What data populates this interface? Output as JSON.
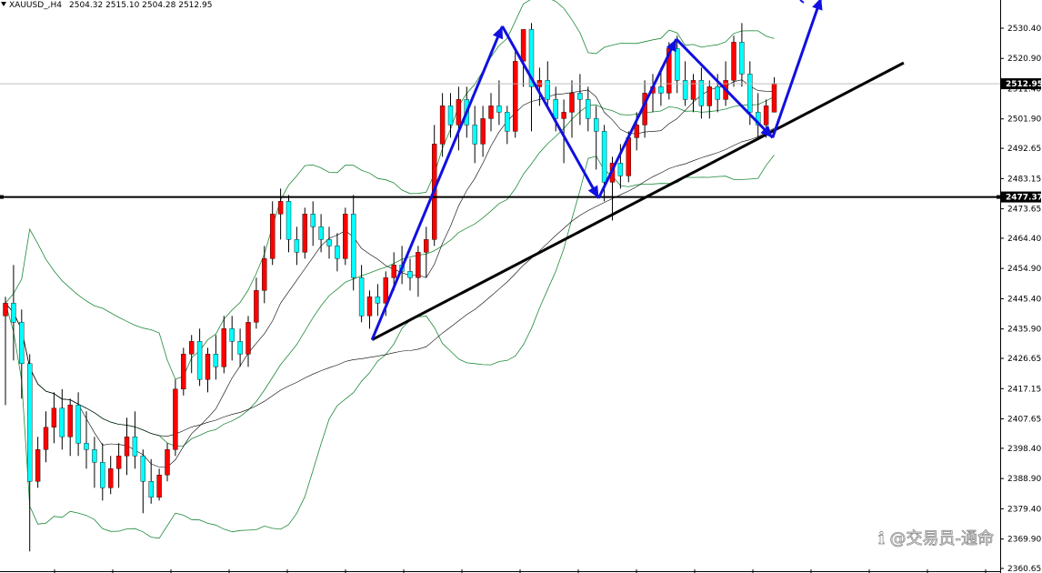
{
  "chart_data": {
    "type": "candlestick",
    "symbol": "XAUUSD_,H4",
    "ohlc_header": "2504.32 2515.10 2504.28 2512.95",
    "y_range": [
      2360.65,
      2540.0
    ],
    "y_ticks": [
      {
        "value": 2530.4,
        "label": "2530.40"
      },
      {
        "value": 2520.9,
        "label": "2520.90"
      },
      {
        "value": 2511.4,
        "label": "2511.40"
      },
      {
        "value": 2501.9,
        "label": "2501.90"
      },
      {
        "value": 2492.65,
        "label": "2492.65"
      },
      {
        "value": 2483.15,
        "label": "2483.15"
      },
      {
        "value": 2473.65,
        "label": "2473.65"
      },
      {
        "value": 2464.4,
        "label": "2464.40"
      },
      {
        "value": 2454.9,
        "label": "2454.90"
      },
      {
        "value": 2445.4,
        "label": "2445.40"
      },
      {
        "value": 2435.9,
        "label": "2435.90"
      },
      {
        "value": 2426.65,
        "label": "2426.65"
      },
      {
        "value": 2417.15,
        "label": "2417.15"
      },
      {
        "value": 2407.65,
        "label": "2407.65"
      },
      {
        "value": 2398.4,
        "label": "2398.40"
      },
      {
        "value": 2388.9,
        "label": "2388.90"
      },
      {
        "value": 2379.4,
        "label": "2379.40"
      },
      {
        "value": 2369.9,
        "label": "2369.90"
      },
      {
        "value": 2360.65,
        "label": "2360.65"
      }
    ],
    "current_price": {
      "value": 2512.95,
      "label": "2512.95"
    },
    "horizontal_level": {
      "value": 2477.37,
      "label": "2477.37"
    },
    "candles": [
      [
        2440,
        2446,
        2412,
        2444
      ],
      [
        2444,
        2456,
        2426,
        2438
      ],
      [
        2438,
        2442,
        2414,
        2425
      ],
      [
        2425,
        2428,
        2366,
        2388
      ],
      [
        2388,
        2402,
        2386,
        2398
      ],
      [
        2398,
        2410,
        2394,
        2405
      ],
      [
        2405,
        2416,
        2400,
        2411
      ],
      [
        2411,
        2417,
        2398,
        2402
      ],
      [
        2402,
        2414,
        2396,
        2412
      ],
      [
        2412,
        2416,
        2396,
        2400
      ],
      [
        2400,
        2410,
        2392,
        2398
      ],
      [
        2398,
        2402,
        2386,
        2394
      ],
      [
        2394,
        2400,
        2382,
        2386
      ],
      [
        2386,
        2396,
        2384,
        2392
      ],
      [
        2392,
        2400,
        2386,
        2396
      ],
      [
        2396,
        2408,
        2390,
        2402
      ],
      [
        2402,
        2410,
        2392,
        2396
      ],
      [
        2396,
        2398,
        2378,
        2388
      ],
      [
        2388,
        2395,
        2381,
        2383
      ],
      [
        2383,
        2392,
        2382,
        2390
      ],
      [
        2390,
        2400,
        2388,
        2398
      ],
      [
        2398,
        2420,
        2396,
        2417
      ],
      [
        2417,
        2430,
        2415,
        2428
      ],
      [
        2428,
        2434,
        2422,
        2432
      ],
      [
        2432,
        2436,
        2418,
        2420
      ],
      [
        2420,
        2430,
        2416,
        2428
      ],
      [
        2428,
        2434,
        2420,
        2424
      ],
      [
        2424,
        2440,
        2422,
        2436
      ],
      [
        2436,
        2440,
        2426,
        2432
      ],
      [
        2432,
        2436,
        2424,
        2428
      ],
      [
        2428,
        2440,
        2424,
        2438
      ],
      [
        2438,
        2452,
        2436,
        2448
      ],
      [
        2448,
        2462,
        2444,
        2458
      ],
      [
        2458,
        2476,
        2456,
        2472
      ],
      [
        2472,
        2480,
        2464,
        2476
      ],
      [
        2476,
        2478,
        2460,
        2464
      ],
      [
        2464,
        2468,
        2456,
        2460
      ],
      [
        2460,
        2474,
        2458,
        2472
      ],
      [
        2472,
        2476,
        2462,
        2468
      ],
      [
        2468,
        2472,
        2460,
        2464
      ],
      [
        2464,
        2468,
        2458,
        2462
      ],
      [
        2462,
        2466,
        2454,
        2458
      ],
      [
        2458,
        2474,
        2456,
        2472
      ],
      [
        2472,
        2478,
        2448,
        2452
      ],
      [
        2452,
        2456,
        2438,
        2440
      ],
      [
        2440,
        2448,
        2436,
        2446
      ],
      [
        2446,
        2450,
        2440,
        2444
      ],
      [
        2444,
        2454,
        2440,
        2452
      ],
      [
        2452,
        2460,
        2448,
        2456
      ],
      [
        2456,
        2462,
        2450,
        2454
      ],
      [
        2454,
        2458,
        2448,
        2452
      ],
      [
        2452,
        2462,
        2446,
        2460
      ],
      [
        2460,
        2468,
        2452,
        2464
      ],
      [
        2464,
        2500,
        2462,
        2494
      ],
      [
        2494,
        2510,
        2490,
        2506
      ],
      [
        2506,
        2510,
        2496,
        2500
      ],
      [
        2500,
        2512,
        2492,
        2508
      ],
      [
        2508,
        2512,
        2496,
        2500
      ],
      [
        2500,
        2506,
        2488,
        2494
      ],
      [
        2494,
        2506,
        2490,
        2502
      ],
      [
        2502,
        2510,
        2498,
        2506
      ],
      [
        2506,
        2514,
        2500,
        2504
      ],
      [
        2504,
        2506,
        2494,
        2498
      ],
      [
        2498,
        2524,
        2496,
        2520
      ],
      [
        2520,
        2530,
        2512,
        2530
      ],
      [
        2530,
        2532,
        2498,
        2512
      ],
      [
        2512,
        2518,
        2506,
        2514
      ],
      [
        2514,
        2520,
        2506,
        2508
      ],
      [
        2508,
        2512,
        2498,
        2502
      ],
      [
        2502,
        2508,
        2488,
        2504
      ],
      [
        2504,
        2514,
        2496,
        2510
      ],
      [
        2510,
        2516,
        2500,
        2508
      ],
      [
        2508,
        2512,
        2498,
        2502
      ],
      [
        2502,
        2506,
        2486,
        2498
      ],
      [
        2498,
        2500,
        2476,
        2482
      ],
      [
        2482,
        2490,
        2470,
        2488
      ],
      [
        2488,
        2494,
        2480,
        2484
      ],
      [
        2484,
        2498,
        2482,
        2496
      ],
      [
        2496,
        2504,
        2492,
        2500
      ],
      [
        2500,
        2514,
        2496,
        2510
      ],
      [
        2510,
        2516,
        2504,
        2512
      ],
      [
        2512,
        2518,
        2506,
        2510
      ],
      [
        2510,
        2526,
        2508,
        2524
      ],
      [
        2524,
        2528,
        2510,
        2514
      ],
      [
        2514,
        2520,
        2506,
        2508
      ],
      [
        2508,
        2516,
        2504,
        2514
      ],
      [
        2514,
        2518,
        2502,
        2506
      ],
      [
        2506,
        2514,
        2502,
        2512
      ],
      [
        2512,
        2516,
        2504,
        2508
      ],
      [
        2508,
        2520,
        2506,
        2514
      ],
      [
        2514,
        2528,
        2512,
        2526
      ],
      [
        2526,
        2532,
        2512,
        2516
      ],
      [
        2516,
        2520,
        2500,
        2504
      ],
      [
        2504,
        2510,
        2496,
        2500
      ],
      [
        2500,
        2508,
        2496,
        2506
      ],
      [
        2504,
        2515,
        2504,
        2513
      ]
    ],
    "arrows": [
      {
        "from": [
          2432.5,
          0
        ],
        "to": [
          2531.0,
          0
        ]
      },
      {
        "from": [
          2531.0,
          0
        ],
        "to": [
          2477.0,
          0
        ]
      },
      {
        "from": [
          2477.0,
          0
        ],
        "to": [
          2527.0,
          0
        ]
      },
      {
        "from": [
          2527.0,
          0
        ],
        "to": [
          2496.0,
          0
        ]
      },
      {
        "from": [
          2496.0,
          0
        ],
        "to": [
          2540.0,
          0
        ]
      }
    ],
    "colors": {
      "bull": "#ff0000",
      "bear": "#00ffff",
      "bands": "#1f8a3a",
      "ma": "#000000",
      "arrows": "#1010e0",
      "trendline": "#000000",
      "price_badge": "#000000"
    },
    "watermark": "ℹ @交易员-通命"
  }
}
